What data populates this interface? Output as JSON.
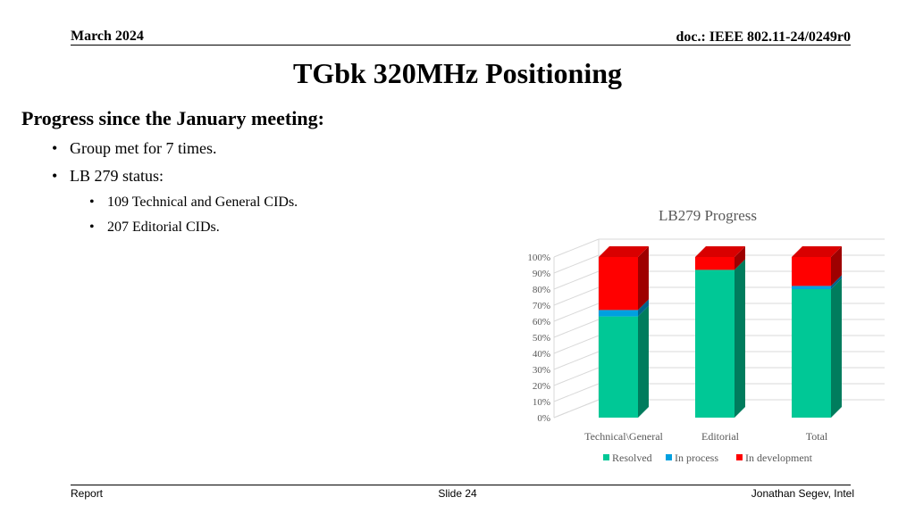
{
  "header": {
    "date": "March 2024",
    "doc": "doc.: IEEE 802.11-24/0249r0"
  },
  "slide": {
    "title": "TGbk 320MHz Positioning",
    "subheading": "Progress since the January meeting:",
    "bullets": [
      {
        "text": "Group met for 7 times.",
        "level": 1
      },
      {
        "text": "LB 279 status:",
        "level": 1
      },
      {
        "text": "109 Technical and General CIDs.",
        "level": 2
      },
      {
        "text": "207 Editorial CIDs.",
        "level": 2
      }
    ]
  },
  "footer": {
    "left": "Report",
    "center": "Slide 24",
    "right": "Jonathan Segev, Intel"
  },
  "chart_data": {
    "type": "bar",
    "stacked": true,
    "three_d": true,
    "title": "LB279 Progress",
    "categories": [
      "Technical\\General",
      "Editorial",
      "Total"
    ],
    "series": [
      {
        "name": "Resolved",
        "color": "#00C896",
        "values": [
          63,
          92,
          80
        ]
      },
      {
        "name": "In process",
        "color": "#00A0E0",
        "values": [
          4,
          0,
          2
        ]
      },
      {
        "name": "In development",
        "color": "#FF0000",
        "values": [
          33,
          8,
          18
        ]
      }
    ],
    "ylim": [
      0,
      100
    ],
    "yticks": [
      "0%",
      "10%",
      "20%",
      "30%",
      "40%",
      "50%",
      "60%",
      "70%",
      "80%",
      "90%",
      "100%"
    ],
    "grid": true,
    "legend": "bottom"
  }
}
